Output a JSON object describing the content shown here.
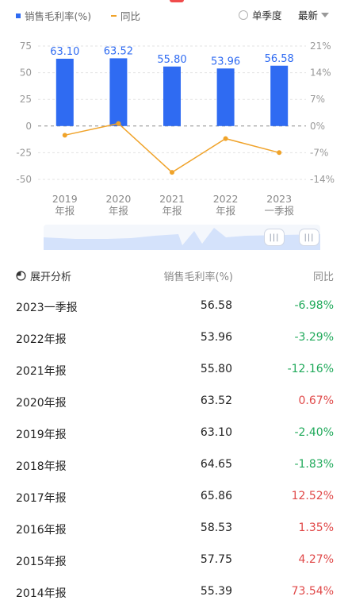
{
  "legend": {
    "primary_label": "销售毛利率(%)",
    "secondary_label": "同比",
    "primary_color": "#2f6bf2",
    "secondary_color": "#f0a32a"
  },
  "controls": {
    "single_quarter_label": "单季度",
    "latest_label": "最新"
  },
  "chart_data": {
    "type": "bar",
    "categories": [
      [
        "2019",
        "年报"
      ],
      [
        "2020",
        "年报"
      ],
      [
        "2021",
        "年报"
      ],
      [
        "2022",
        "年报"
      ],
      [
        "2023",
        "一季报"
      ]
    ],
    "series": [
      {
        "name": "销售毛利率(%)",
        "type": "bar",
        "values": [
          63.1,
          63.52,
          55.8,
          53.96,
          56.58
        ],
        "labels": [
          "63.10",
          "63.52",
          "55.80",
          "53.96",
          "56.58"
        ]
      },
      {
        "name": "同比",
        "type": "line",
        "values": [
          -2.4,
          0.67,
          -12.16,
          -3.29,
          -6.98
        ]
      }
    ],
    "ylim_left": [
      -50,
      75
    ],
    "yticks_left": [
      "75",
      "50",
      "25",
      "0",
      "-25",
      "-50"
    ],
    "ylim_right": [
      -14,
      21
    ],
    "yticks_right": [
      "21%",
      "14%",
      "7%",
      "0%",
      "-7%",
      "-14%"
    ],
    "grid": true
  },
  "slider": {
    "handle_icon": "|||"
  },
  "table": {
    "expand_label": "展开分析",
    "col2_header": "销售毛利率(%)",
    "col3_header": "同比",
    "positive_color": "#e04848",
    "negative_color": "#1fa95a",
    "rows": [
      {
        "period": "2023一季报",
        "value": "56.58",
        "yoy": "-6.98%",
        "sign": "neg"
      },
      {
        "period": "2022年报",
        "value": "53.96",
        "yoy": "-3.29%",
        "sign": "neg"
      },
      {
        "period": "2021年报",
        "value": "55.80",
        "yoy": "-12.16%",
        "sign": "neg"
      },
      {
        "period": "2020年报",
        "value": "63.52",
        "yoy": "0.67%",
        "sign": "pos"
      },
      {
        "period": "2019年报",
        "value": "63.10",
        "yoy": "-2.40%",
        "sign": "neg"
      },
      {
        "period": "2018年报",
        "value": "64.65",
        "yoy": "-1.83%",
        "sign": "neg"
      },
      {
        "period": "2017年报",
        "value": "65.86",
        "yoy": "12.52%",
        "sign": "pos"
      },
      {
        "period": "2016年报",
        "value": "58.53",
        "yoy": "1.35%",
        "sign": "pos"
      },
      {
        "period": "2015年报",
        "value": "57.75",
        "yoy": "4.27%",
        "sign": "pos"
      },
      {
        "period": "2014年报",
        "value": "55.39",
        "yoy": "73.54%",
        "sign": "pos"
      }
    ]
  }
}
